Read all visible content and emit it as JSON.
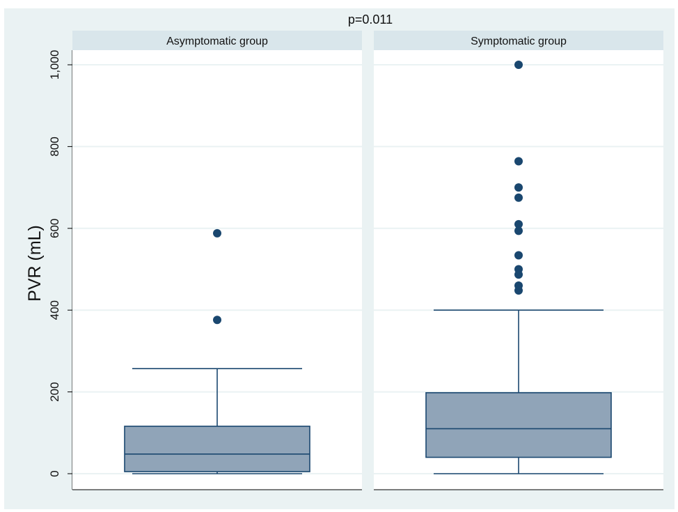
{
  "chart_data": {
    "type": "boxplot",
    "title": "p=0.011",
    "ylabel": "PVR (mL)",
    "ylim": [
      0,
      1000
    ],
    "yticks": [
      0,
      200,
      400,
      600,
      800,
      1000
    ],
    "ytick_labels": [
      "0",
      "200",
      "400",
      "600",
      "800",
      "1,000"
    ],
    "grid": true,
    "colors": {
      "outer_background": "#eaf2f3",
      "plot_background": "#ffffff",
      "strip_background": "#d9e6eb",
      "box_fill": "#90a4b8",
      "box_stroke": "#1a476f",
      "outlier": "#1a476f",
      "gridline": "#eaf2f3"
    },
    "panels": [
      {
        "label": "Asymptomatic group",
        "whisker_low": 0,
        "q1": 5,
        "median": 48,
        "q3": 116,
        "whisker_high": 257,
        "outliers": [
          376,
          588
        ]
      },
      {
        "label": "Symptomatic group",
        "whisker_low": 0,
        "q1": 40,
        "median": 110,
        "q3": 198,
        "whisker_high": 400,
        "outliers": [
          448,
          460,
          487,
          500,
          534,
          594,
          610,
          675,
          700,
          764,
          1000
        ]
      }
    ]
  }
}
